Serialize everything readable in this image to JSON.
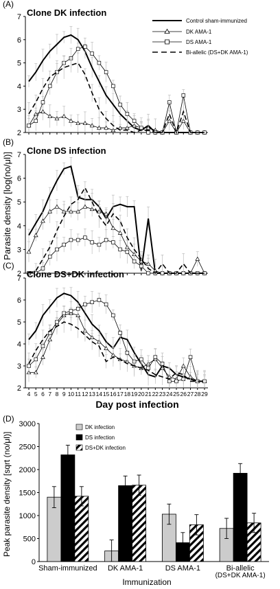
{
  "figure": {
    "shared_ylabel": "Parasite density [log(no/μl)]",
    "shared_xlabel": "Day post infection",
    "legend_line": [
      "Control sham-immunized",
      "DK AMA-1",
      "DS AMA-1",
      "Bi-allelic (DS+DK AMA-1)"
    ],
    "legend_bar": [
      "DK infection",
      "DS infection",
      "DS+DK infection"
    ],
    "colors": {
      "black": "#000000",
      "grey": "#cccccc",
      "errbar": "#bbbbbb"
    }
  },
  "chart_data": [
    {
      "type": "line",
      "panel": "(A)",
      "title": "Clone DK infection",
      "ylim": [
        2,
        7
      ],
      "yticks": [
        2,
        3,
        4,
        5,
        6,
        7
      ],
      "x": [
        4,
        5,
        6,
        7,
        8,
        9,
        10,
        11,
        12,
        13,
        14,
        15,
        16,
        17,
        18,
        19,
        20,
        21,
        22,
        23,
        24,
        25,
        26,
        27,
        28,
        29
      ],
      "series": [
        {
          "name": "Control sham-immunized",
          "style": "solid-thick",
          "values": [
            4.2,
            4.6,
            5.1,
            5.5,
            5.8,
            6.1,
            6.2,
            6.0,
            5.5,
            4.8,
            4.2,
            3.6,
            3.2,
            2.8,
            2.5,
            2.2,
            2.1,
            2.3,
            2.0,
            2.0,
            2.0,
            2.0,
            2.0,
            2.0,
            2.0,
            2.0
          ]
        },
        {
          "name": "DK AMA-1",
          "style": "triangle",
          "values": [
            2.3,
            2.8,
            2.9,
            2.7,
            2.6,
            2.7,
            2.5,
            2.4,
            2.4,
            2.3,
            2.2,
            2.2,
            2.1,
            2.2,
            2.2,
            2.3,
            2.2,
            2.2,
            2.1,
            2.0,
            2.5,
            2.0,
            2.5,
            2.0,
            2.0,
            2.0
          ]
        },
        {
          "name": "DS AMA-1",
          "style": "square",
          "values": [
            2.3,
            2.5,
            3.3,
            4.0,
            4.6,
            5.0,
            5.2,
            5.6,
            5.7,
            5.4,
            5.0,
            4.6,
            4.0,
            3.2,
            2.8,
            2.5,
            2.2,
            2.0,
            2.0,
            2.0,
            3.3,
            2.0,
            3.6,
            2.0,
            2.0,
            2.0
          ]
        },
        {
          "name": "Bi-allelic (DS+DK AMA-1)",
          "style": "dashed",
          "values": [
            2.8,
            3.3,
            3.9,
            4.4,
            4.6,
            4.8,
            4.9,
            5.0,
            4.5,
            3.7,
            3.0,
            2.6,
            2.3,
            2.1,
            2.1,
            2.0,
            2.1,
            2.1,
            2.0,
            2.0,
            2.8,
            2.0,
            2.9,
            2.0,
            2.0,
            2.0
          ]
        }
      ]
    },
    {
      "type": "line",
      "panel": "(B)",
      "title": "Clone DS infection",
      "ylim": [
        2,
        7
      ],
      "yticks": [
        2,
        3,
        4,
        5,
        6,
        7
      ],
      "x": [
        4,
        5,
        6,
        7,
        8,
        9,
        10,
        11,
        12,
        13,
        14,
        15,
        16,
        17,
        18,
        19,
        20,
        21,
        22,
        23,
        24,
        25,
        26,
        27,
        28,
        29
      ],
      "series": [
        {
          "name": "Control sham-immunized",
          "style": "solid-thick",
          "values": [
            3.6,
            4.1,
            4.6,
            5.3,
            5.9,
            6.4,
            6.5,
            5.2,
            5.1,
            5.1,
            4.8,
            4.3,
            4.8,
            4.9,
            4.8,
            4.8,
            2.1,
            4.3,
            2.0,
            2.0,
            2.0,
            2.0,
            2.0,
            2.0,
            2.0,
            2.0
          ]
        },
        {
          "name": "DK AMA-1",
          "style": "triangle",
          "values": [
            2.9,
            3.6,
            4.2,
            4.6,
            4.8,
            4.6,
            4.6,
            4.6,
            4.8,
            4.7,
            4.6,
            4.5,
            3.9,
            3.7,
            3.1,
            2.8,
            2.5,
            2.4,
            2.1,
            2.0,
            2.0,
            2.0,
            2.0,
            2.0,
            2.6,
            2.0
          ]
        },
        {
          "name": "DS AMA-1",
          "style": "square",
          "values": [
            2.0,
            2.0,
            2.2,
            2.7,
            3.0,
            3.2,
            3.4,
            3.4,
            3.5,
            3.3,
            3.2,
            3.4,
            3.3,
            3.0,
            2.9,
            2.5,
            2.3,
            2.0,
            2.0,
            2.0,
            2.0,
            2.0,
            2.0,
            2.0,
            2.0,
            2.0
          ]
        },
        {
          "name": "Bi-allelic (DS+DK AMA-1)",
          "style": "dashed",
          "values": [
            2.0,
            2.1,
            2.6,
            3.1,
            3.8,
            4.4,
            4.9,
            5.1,
            5.6,
            5.0,
            4.4,
            4.0,
            4.5,
            4.2,
            3.5,
            3.0,
            2.6,
            2.2,
            2.0,
            2.4,
            2.0,
            2.0,
            2.4,
            2.0,
            2.0,
            2.0
          ]
        }
      ]
    },
    {
      "type": "line",
      "panel": "(C)",
      "title": "Clone DS+DK infection",
      "ylim": [
        2,
        7
      ],
      "yticks": [
        2,
        3,
        4,
        5,
        6,
        7
      ],
      "x": [
        4,
        5,
        6,
        7,
        8,
        9,
        10,
        11,
        12,
        13,
        14,
        15,
        16,
        17,
        18,
        19,
        20,
        21,
        22,
        23,
        24,
        25,
        26,
        27,
        28,
        29
      ],
      "xlabel": "Day post infection",
      "series": [
        {
          "name": "Control sham-immunized",
          "style": "solid-thick",
          "values": [
            4.2,
            4.6,
            5.3,
            5.7,
            6.1,
            6.3,
            6.2,
            5.9,
            5.4,
            4.9,
            4.6,
            4.1,
            3.8,
            4.3,
            4.2,
            3.6,
            3.1,
            2.6,
            2.5,
            3.0,
            2.9,
            2.6,
            2.5,
            2.4,
            2.3,
            2.3
          ]
        },
        {
          "name": "DK AMA-1",
          "style": "triangle",
          "values": [
            2.7,
            2.7,
            3.4,
            4.2,
            4.9,
            5.3,
            5.4,
            5.3,
            4.6,
            4.3,
            4.1,
            3.8,
            3.5,
            3.3,
            3.2,
            3.0,
            2.9,
            3.1,
            3.3,
            2.9,
            2.5,
            2.4,
            3.0,
            2.5,
            2.3,
            2.3
          ]
        },
        {
          "name": "DS AMA-1",
          "style": "square",
          "values": [
            3.0,
            3.3,
            3.9,
            4.5,
            5.0,
            5.4,
            5.5,
            5.6,
            5.8,
            5.9,
            6.0,
            5.8,
            5.3,
            4.5,
            3.6,
            3.2,
            3.3,
            2.9,
            3.4,
            3.1,
            2.3,
            2.3,
            2.4,
            3.4,
            2.3,
            2.3
          ]
        },
        {
          "name": "Bi-allelic (DS+DK AMA-1)",
          "style": "dashed",
          "values": [
            3.1,
            3.7,
            4.2,
            4.6,
            4.8,
            5.0,
            4.9,
            4.7,
            4.4,
            4.1,
            3.9,
            3.2,
            3.4,
            3.3,
            3.1,
            3.0,
            2.9,
            2.8,
            2.6,
            2.5,
            2.4,
            2.7,
            2.6,
            2.3,
            2.3,
            2.3
          ]
        }
      ]
    },
    {
      "type": "bar",
      "panel": "(D)",
      "ylabel": "Peak parasite density [sqrt (no/μl)]",
      "xlabel": "Immunization",
      "ylim": [
        0,
        3000
      ],
      "yticks": [
        0,
        500,
        1000,
        1500,
        2000,
        2500,
        3000
      ],
      "categories": [
        "Sham-immunized",
        "DK AMA-1",
        "DS AMA-1",
        "Bi-allelic\n(DS+DK AMA-1)"
      ],
      "series": [
        {
          "name": "DK infection",
          "fill": "grey",
          "values": [
            1400,
            230,
            1030,
            720
          ],
          "errors": [
            230,
            240,
            220,
            220
          ]
        },
        {
          "name": "DS infection",
          "fill": "black",
          "values": [
            2320,
            1650,
            410,
            1920
          ],
          "errors": [
            210,
            210,
            220,
            210
          ]
        },
        {
          "name": "DS+DK infection",
          "fill": "hatch",
          "values": [
            1420,
            1660,
            800,
            840
          ],
          "errors": [
            210,
            220,
            220,
            210
          ]
        }
      ]
    }
  ]
}
